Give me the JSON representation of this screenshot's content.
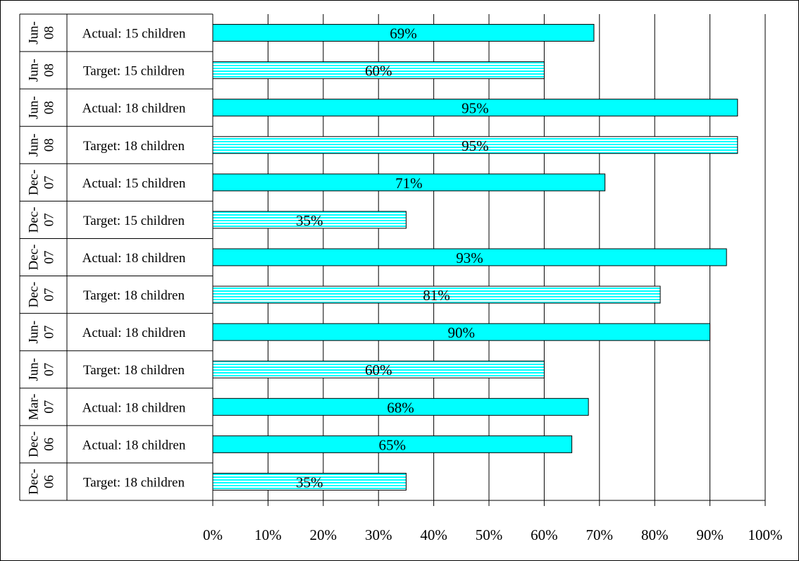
{
  "chart_data": {
    "type": "bar",
    "orientation": "horizontal",
    "xlim": [
      0,
      100
    ],
    "x_ticks": [
      "0%",
      "10%",
      "20%",
      "30%",
      "40%",
      "50%",
      "60%",
      "70%",
      "80%",
      "90%",
      "100%"
    ],
    "grid": "vertical gridlines",
    "legend": "none",
    "colors": {
      "actual": "#00FFFF",
      "target_stripe": "#00FFFF",
      "target_bg": "#FFFFFF",
      "outline": "#000000",
      "gridline": "#000000"
    },
    "bars": [
      {
        "date": "Jun-08",
        "label": "Actual: 15 children",
        "kind": "actual",
        "value": 69,
        "value_label": "69%"
      },
      {
        "date": "Jun-08",
        "label": "Target: 15 children",
        "kind": "target",
        "value": 60,
        "value_label": "60%"
      },
      {
        "date": "Jun-08",
        "label": "Actual: 18 children",
        "kind": "actual",
        "value": 95,
        "value_label": "95%"
      },
      {
        "date": "Jun-08",
        "label": "Target: 18 children",
        "kind": "target",
        "value": 95,
        "value_label": "95%"
      },
      {
        "date": "Dec-07",
        "label": "Actual: 15 children",
        "kind": "actual",
        "value": 71,
        "value_label": "71%"
      },
      {
        "date": "Dec-07",
        "label": "Target: 15 children",
        "kind": "target",
        "value": 35,
        "value_label": "35%"
      },
      {
        "date": "Dec-07",
        "label": "Actual: 18 children",
        "kind": "actual",
        "value": 93,
        "value_label": "93%"
      },
      {
        "date": "Dec-07",
        "label": "Target: 18 children",
        "kind": "target",
        "value": 81,
        "value_label": "81%"
      },
      {
        "date": "Jun-07",
        "label": "Actual: 18 children",
        "kind": "actual",
        "value": 90,
        "value_label": "90%"
      },
      {
        "date": "Jun-07",
        "label": "Target: 18 children",
        "kind": "target",
        "value": 60,
        "value_label": "60%"
      },
      {
        "date": "Mar-07",
        "label": "Actual: 18 children",
        "kind": "actual",
        "value": 68,
        "value_label": "68%"
      },
      {
        "date": "Dec-06",
        "label": "Actual: 18 children",
        "kind": "actual",
        "value": 65,
        "value_label": "65%"
      },
      {
        "date": "Dec-06",
        "label": "Target: 18 children",
        "kind": "target",
        "value": 35,
        "value_label": "35%"
      }
    ]
  }
}
